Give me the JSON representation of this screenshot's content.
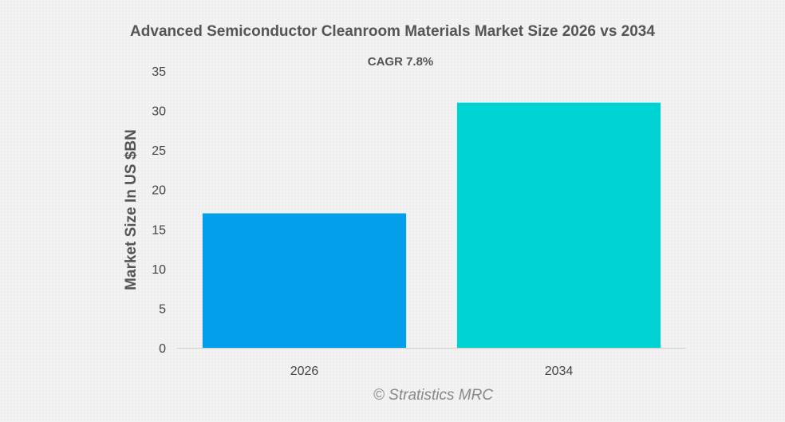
{
  "chart_data": {
    "type": "bar",
    "title": "Advanced Semiconductor Cleanroom Materials Market Size 2026 vs 2034",
    "annotation": "CAGR 7.8%",
    "xlabel": "",
    "ylabel": "Market Size In US $BN",
    "categories": [
      "2026",
      "2034"
    ],
    "values": [
      17,
      31
    ],
    "bar_colors": [
      "#039fea",
      "#00d3d3"
    ],
    "ylim": [
      0,
      35
    ],
    "yticks": [
      0,
      5,
      10,
      15,
      20,
      25,
      30,
      35
    ],
    "grid": false,
    "legend": "none"
  },
  "watermark": "© Stratistics MRC"
}
